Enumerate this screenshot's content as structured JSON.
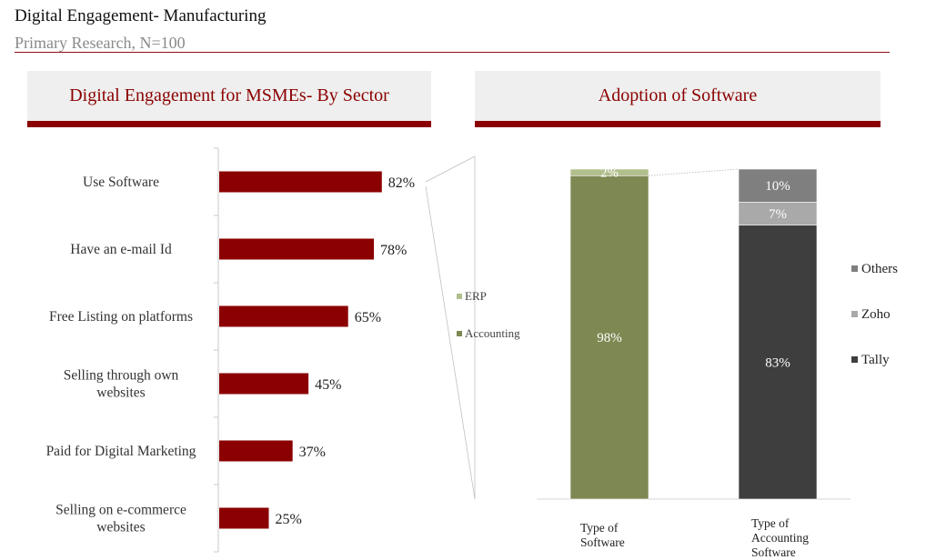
{
  "page": {
    "title": "Digital Engagement- Manufacturing",
    "subtitle": "Primary Research, N=100"
  },
  "panels": {
    "left_title": "Digital Engagement for MSMEs- By Sector",
    "right_title": "Adoption of Software"
  },
  "colors": {
    "brand": "#8b0000",
    "accounting": "#7d8852",
    "erp": "#b1bf8c",
    "tally": "#3e3e3e",
    "zoho": "#a9a9a9",
    "others": "#7f7f7f"
  },
  "chart_data": [
    {
      "type": "bar",
      "orientation": "horizontal",
      "title": "Digital Engagement for MSMEs- By Sector",
      "categories": [
        [
          "Use Software"
        ],
        [
          "Have an e-mail Id"
        ],
        [
          "Free Listing on platforms"
        ],
        [
          "Selling through own",
          "websites"
        ],
        [
          "Paid for Digital Marketing"
        ],
        [
          "Selling on e-commerce",
          "websites"
        ]
      ],
      "values": [
        82,
        78,
        65,
        45,
        37,
        25
      ],
      "value_labels": [
        "82%",
        "78%",
        "65%",
        "45%",
        "37%",
        "25%"
      ],
      "xlim": [
        0,
        100
      ],
      "grid": false
    },
    {
      "type": "bar",
      "stacked": true,
      "title": "Adoption of Software",
      "categories": [
        [
          "Type of",
          "Software"
        ],
        [
          "Type of",
          "Accounting",
          "Software"
        ]
      ],
      "ylim": [
        0,
        100
      ],
      "grid": false,
      "bars": [
        {
          "segments": [
            {
              "name": "Accounting",
              "value": 98,
              "label": "98%"
            },
            {
              "name": "ERP",
              "value": 2,
              "label": "2%"
            }
          ]
        },
        {
          "segments": [
            {
              "name": "Tally",
              "value": 83,
              "label": "83%"
            },
            {
              "name": "Zoho",
              "value": 7,
              "label": "7%"
            },
            {
              "name": "Others",
              "value": 10,
              "label": "10%"
            }
          ]
        }
      ],
      "legend_software": [
        "ERP",
        "Accounting"
      ],
      "legend_accounting": [
        "Others",
        "Zoho",
        "Tally"
      ]
    }
  ]
}
